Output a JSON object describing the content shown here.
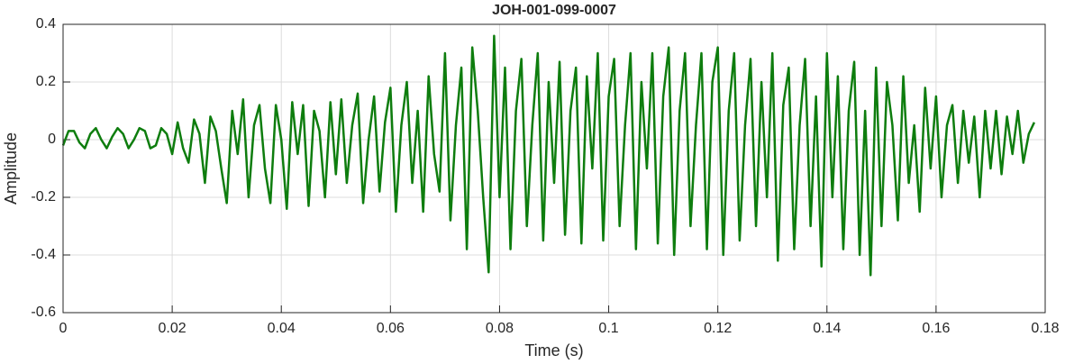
{
  "chart_data": {
    "type": "line",
    "title": "JOH-001-099-0007",
    "xlabel": "Time (s)",
    "ylabel": "Amplitude",
    "color": "#0e7d0e",
    "grid": true,
    "xlim": [
      0,
      0.18
    ],
    "xticks": [
      0,
      0.02,
      0.04,
      0.06,
      0.08,
      0.1,
      0.12,
      0.14,
      0.16,
      0.18
    ],
    "ylim": [
      -0.6,
      0.4
    ],
    "yticks": [
      -0.6,
      -0.4,
      -0.2,
      0,
      0.2,
      0.4
    ],
    "x": [
      0,
      0.001,
      0.002,
      0.003,
      0.004,
      0.005,
      0.006,
      0.007,
      0.008,
      0.009,
      0.01,
      0.011,
      0.012,
      0.013,
      0.014,
      0.015,
      0.016,
      0.017,
      0.018,
      0.019,
      0.02,
      0.021,
      0.022,
      0.023,
      0.024,
      0.025,
      0.026,
      0.027,
      0.028,
      0.029,
      0.03,
      0.031,
      0.032,
      0.033,
      0.034,
      0.035,
      0.036,
      0.037,
      0.038,
      0.039,
      0.04,
      0.041,
      0.042,
      0.043,
      0.044,
      0.045,
      0.046,
      0.047,
      0.048,
      0.049,
      0.05,
      0.051,
      0.052,
      0.053,
      0.054,
      0.055,
      0.056,
      0.057,
      0.058,
      0.059,
      0.06,
      0.061,
      0.062,
      0.063,
      0.064,
      0.065,
      0.066,
      0.067,
      0.068,
      0.069,
      0.07,
      0.071,
      0.072,
      0.073,
      0.074,
      0.075,
      0.076,
      0.077,
      0.078,
      0.079,
      0.08,
      0.081,
      0.082,
      0.083,
      0.084,
      0.085,
      0.086,
      0.087,
      0.088,
      0.089,
      0.09,
      0.091,
      0.092,
      0.093,
      0.094,
      0.095,
      0.096,
      0.097,
      0.098,
      0.099,
      0.1,
      0.101,
      0.102,
      0.103,
      0.104,
      0.105,
      0.106,
      0.107,
      0.108,
      0.109,
      0.11,
      0.111,
      0.112,
      0.113,
      0.114,
      0.115,
      0.116,
      0.117,
      0.118,
      0.119,
      0.12,
      0.121,
      0.122,
      0.123,
      0.124,
      0.125,
      0.126,
      0.127,
      0.128,
      0.129,
      0.13,
      0.131,
      0.132,
      0.133,
      0.134,
      0.135,
      0.136,
      0.137,
      0.138,
      0.139,
      0.14,
      0.141,
      0.142,
      0.143,
      0.144,
      0.145,
      0.146,
      0.147,
      0.148,
      0.149,
      0.15,
      0.151,
      0.152,
      0.153,
      0.154,
      0.155,
      0.156,
      0.157,
      0.158,
      0.159,
      0.16,
      0.161,
      0.162,
      0.163,
      0.164,
      0.165,
      0.166,
      0.167,
      0.168,
      0.169,
      0.17,
      0.171,
      0.172,
      0.173,
      0.174,
      0.175,
      0.176,
      0.177,
      0.178
    ],
    "values": [
      -0.02,
      0.03,
      0.03,
      -0.01,
      -0.03,
      0.02,
      0.04,
      0.0,
      -0.03,
      0.01,
      0.04,
      0.02,
      -0.03,
      0.0,
      0.04,
      0.03,
      -0.03,
      -0.02,
      0.04,
      0.02,
      -0.05,
      0.06,
      -0.03,
      -0.08,
      0.07,
      0.02,
      -0.15,
      0.08,
      0.03,
      -0.1,
      -0.22,
      0.1,
      -0.05,
      0.14,
      -0.2,
      0.05,
      0.12,
      -0.1,
      -0.22,
      0.12,
      0.0,
      -0.24,
      0.13,
      -0.05,
      0.12,
      -0.23,
      0.1,
      0.03,
      -0.2,
      0.13,
      -0.12,
      0.14,
      -0.15,
      0.05,
      0.16,
      -0.22,
      0.0,
      0.15,
      -0.18,
      0.06,
      0.18,
      -0.25,
      0.05,
      0.2,
      -0.15,
      0.1,
      -0.25,
      0.22,
      -0.05,
      -0.18,
      0.3,
      -0.28,
      0.05,
      0.25,
      -0.38,
      0.32,
      0.1,
      -0.2,
      -0.46,
      0.36,
      -0.2,
      0.25,
      -0.38,
      0.1,
      0.28,
      -0.3,
      0.05,
      0.3,
      -0.35,
      0.2,
      -0.15,
      0.27,
      -0.33,
      0.1,
      0.25,
      -0.36,
      0.22,
      -0.1,
      0.3,
      -0.35,
      0.15,
      0.28,
      -0.3,
      0.05,
      0.3,
      -0.38,
      0.2,
      -0.1,
      0.3,
      -0.36,
      0.15,
      0.32,
      -0.4,
      0.1,
      0.3,
      -0.3,
      0.05,
      0.3,
      -0.38,
      0.2,
      0.32,
      -0.4,
      0.1,
      0.3,
      -0.35,
      0.05,
      0.28,
      -0.3,
      0.2,
      -0.2,
      0.3,
      -0.42,
      0.12,
      0.25,
      -0.38,
      0.05,
      0.28,
      -0.3,
      0.15,
      -0.44,
      0.3,
      -0.2,
      0.22,
      -0.38,
      0.1,
      0.27,
      -0.4,
      0.1,
      -0.47,
      0.25,
      -0.3,
      0.2,
      0.05,
      -0.28,
      0.22,
      -0.15,
      0.05,
      -0.25,
      0.18,
      -0.1,
      0.15,
      -0.2,
      0.05,
      0.12,
      -0.15,
      0.1,
      -0.08,
      0.08,
      -0.2,
      0.1,
      -0.1,
      0.1,
      -0.12,
      0.08,
      -0.05,
      0.1,
      -0.08,
      0.02,
      0.06
    ]
  }
}
